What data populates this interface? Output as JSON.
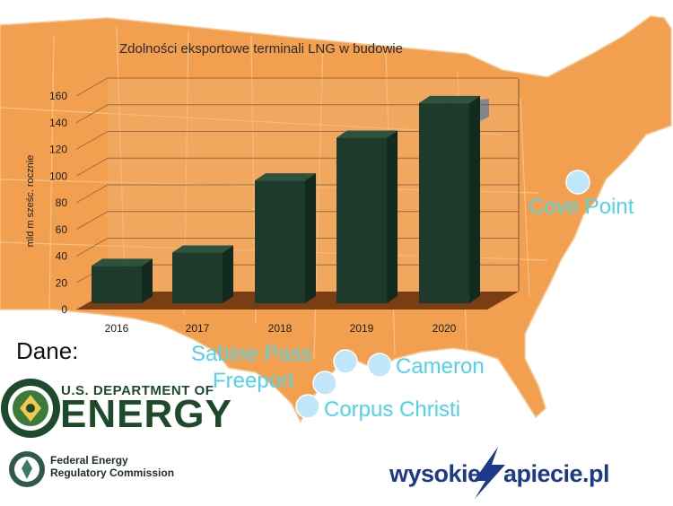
{
  "chart_data": {
    "type": "bar",
    "title": "Zdolności eksportowe terminali LNG w budowie",
    "ylabel": "mld  m sześc. rocznie",
    "xlabel": "",
    "categories": [
      "2016",
      "2017",
      "2018",
      "2019",
      "2020"
    ],
    "values": [
      28,
      38,
      92,
      124,
      150
    ],
    "ylim": [
      0,
      160
    ],
    "yticks": [
      "0",
      "20",
      "40",
      "60",
      "80",
      "100",
      "120",
      "140",
      "160"
    ],
    "grid": true,
    "bar_color": "#1e3a2c"
  },
  "map": {
    "land_color": "#f2a04f",
    "terminals": [
      "Sabine Pass",
      "Cameron",
      "Freeport",
      "Corpus Christi",
      "Cove Point"
    ]
  },
  "sources": {
    "label": "Dane:",
    "doe_line1": "U.S. DEPARTMENT OF",
    "doe_line2": "ENERGY",
    "ferc_line1": "Federal Energy",
    "ferc_line2": "Regulatory Commission"
  },
  "brand": {
    "part1": "wysokie",
    "part2": "apiecie.pl"
  }
}
